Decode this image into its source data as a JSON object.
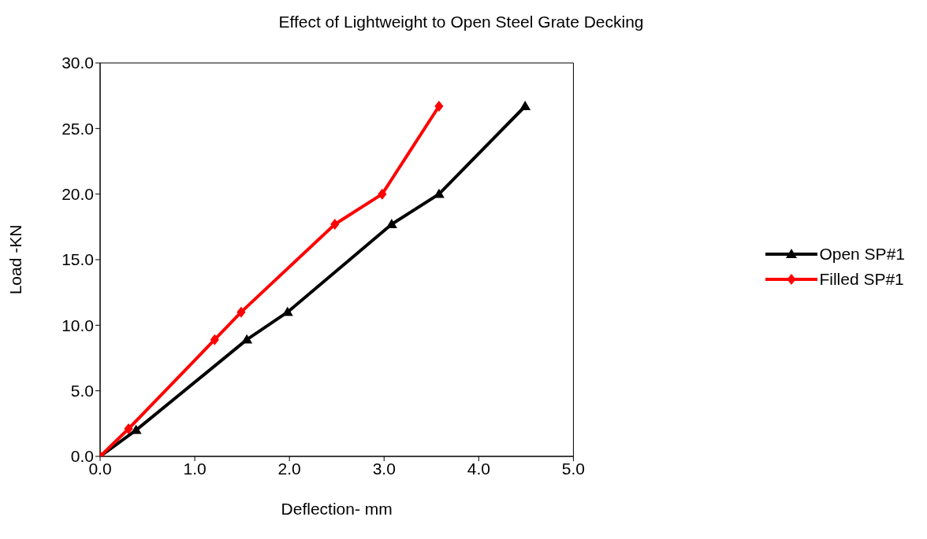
{
  "chart_data": {
    "type": "line",
    "title": "Effect of Lightweight to Open Steel Grate Decking",
    "xlabel": "Deflection- mm",
    "ylabel": "Load -KN",
    "xlim": [
      0,
      5
    ],
    "xticks": [
      {
        "value": 0,
        "label": "0.0"
      },
      {
        "value": 1,
        "label": "1.0"
      },
      {
        "value": 2,
        "label": "2.0"
      },
      {
        "value": 3,
        "label": "3.0"
      },
      {
        "value": 4,
        "label": "4.0"
      },
      {
        "value": 5,
        "label": "5.0"
      }
    ],
    "ylim": [
      0,
      30
    ],
    "yticks": [
      {
        "value": 0,
        "label": "0.0"
      },
      {
        "value": 5,
        "label": "5.0"
      },
      {
        "value": 10,
        "label": "10.0"
      },
      {
        "value": 15,
        "label": "15.0"
      },
      {
        "value": 20,
        "label": "20.0"
      },
      {
        "value": 25,
        "label": "25.0"
      },
      {
        "value": 30,
        "label": "30.0"
      }
    ],
    "grid": false,
    "legend": "right",
    "line_style": "solid",
    "series": [
      {
        "name": "Open SP#1",
        "color": "#000000",
        "marker": "triangle",
        "x": [
          0,
          0.38,
          1.55,
          1.98,
          3.08,
          3.58,
          4.49
        ],
        "values": [
          0,
          2.0,
          8.9,
          11.0,
          17.7,
          20.0,
          26.7
        ]
      },
      {
        "name": "Filled SP#1",
        "color": "#ff0000",
        "marker": "diamond",
        "x": [
          0,
          0.3,
          1.21,
          1.49,
          2.48,
          2.98,
          3.58
        ],
        "values": [
          0,
          2.1,
          8.9,
          11.0,
          17.7,
          20.0,
          26.7
        ]
      }
    ]
  }
}
